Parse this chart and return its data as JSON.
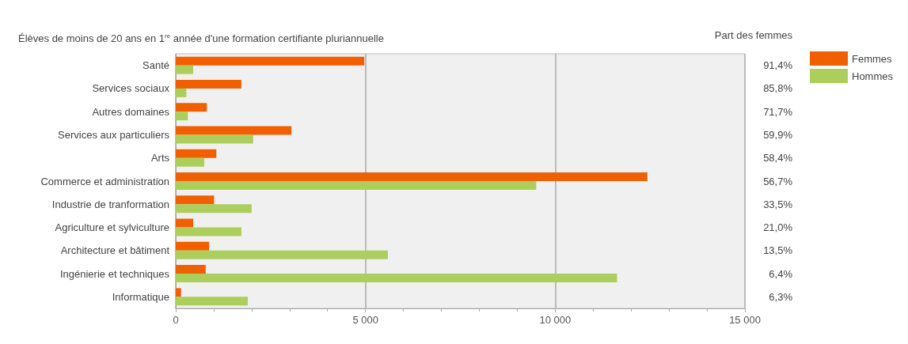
{
  "chart_data": {
    "type": "bar",
    "orientation": "horizontal",
    "title": "Élèves de moins de 20 ans en 1$^{re}$ année d'une formation certifiante pluriannuelle",
    "categories": [
      "Santé",
      "Services sociaux",
      "Autres domaines",
      "Services aux particuliers",
      "Arts",
      "Commerce et administration",
      "Industrie de tranformation",
      "Agriculture et sylviculture",
      "Architecture et bâtiment",
      "Ingénierie et techniques",
      "Informatique"
    ],
    "series": [
      {
        "name": "Femmes",
        "color": "#f06000",
        "values": [
          4970,
          1730,
          820,
          3050,
          1070,
          12430,
          1010,
          460,
          880,
          790,
          140
        ]
      },
      {
        "name": "Hommes",
        "color": "#acce5c",
        "values": [
          460,
          280,
          320,
          2040,
          750,
          9500,
          2000,
          1730,
          5590,
          11630,
          1900
        ]
      }
    ],
    "xlim": [
      0,
      15000
    ],
    "xticks": [
      0,
      {
        "value": 1000,
        "label": null
      },
      {
        "value": 2000,
        "label": null
      },
      {
        "value": 3000,
        "label": null
      },
      {
        "value": 4000,
        "label": null
      },
      {
        "value": 5000,
        "label": "5 000"
      },
      {
        "value": 6000,
        "label": null
      },
      {
        "value": 7000,
        "label": null
      },
      {
        "value": 8000,
        "label": null
      },
      {
        "value": 9000,
        "label": null
      },
      {
        "value": 10000,
        "label": "10 000"
      },
      {
        "value": 11000,
        "label": null
      },
      {
        "value": 12000,
        "label": null
      },
      {
        "value": 13000,
        "label": null
      },
      {
        "value": 14000,
        "label": null
      },
      {
        "value": 15000,
        "label": "15 000"
      }
    ],
    "grid": "x",
    "legend": "top right",
    "annotations": [
      "Part des femmes",
      "91,4%",
      "85,8%",
      "71,7%",
      "59,9%",
      "58,4%",
      "56,7%",
      "33,5%",
      "21,0%",
      "13,5%",
      "6,4%",
      "6,3%"
    ]
  }
}
